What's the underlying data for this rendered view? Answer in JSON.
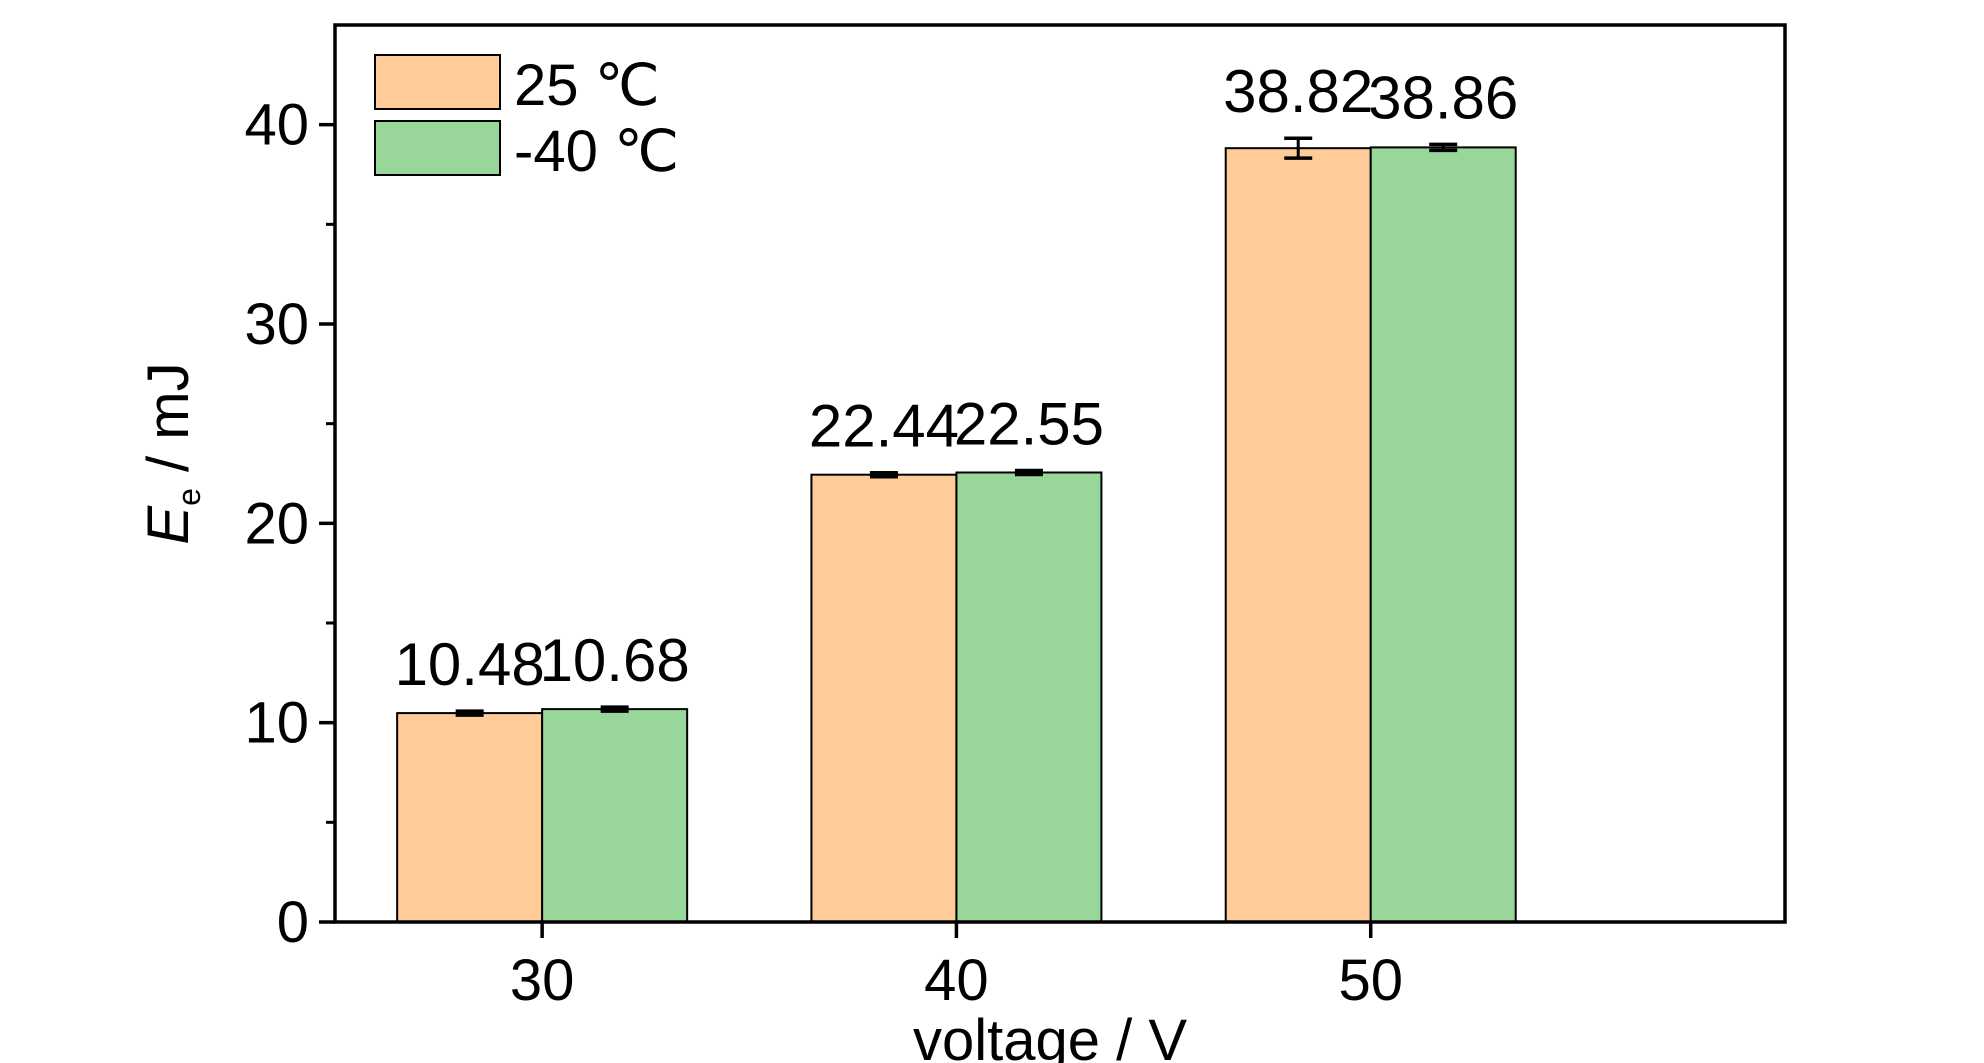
{
  "chart_data": {
    "type": "bar",
    "title": "",
    "xlabel": "voltage / V",
    "ylabel": {
      "symbol": "E",
      "subscript": "e",
      "unit": " / mJ"
    },
    "categories": [
      "30",
      "40",
      "50"
    ],
    "ylim": [
      0,
      45
    ],
    "yticks": [
      0,
      10,
      20,
      30,
      40
    ],
    "y_minor_step": 5,
    "grid": false,
    "legend_position": "top-left",
    "series": [
      {
        "name": "25 ℃",
        "color": "#FFCC99",
        "values": [
          10.48,
          22.44,
          38.82
        ],
        "value_labels": [
          "10.48",
          "22.44",
          "38.82"
        ],
        "errors": [
          0.1,
          0.1,
          0.5
        ]
      },
      {
        "name": "-40 ℃",
        "color": "#99D699",
        "values": [
          10.68,
          22.55,
          38.86
        ],
        "value_labels": [
          "10.68",
          "22.55",
          "38.86"
        ],
        "errors": [
          0.1,
          0.1,
          0.15
        ]
      }
    ]
  }
}
